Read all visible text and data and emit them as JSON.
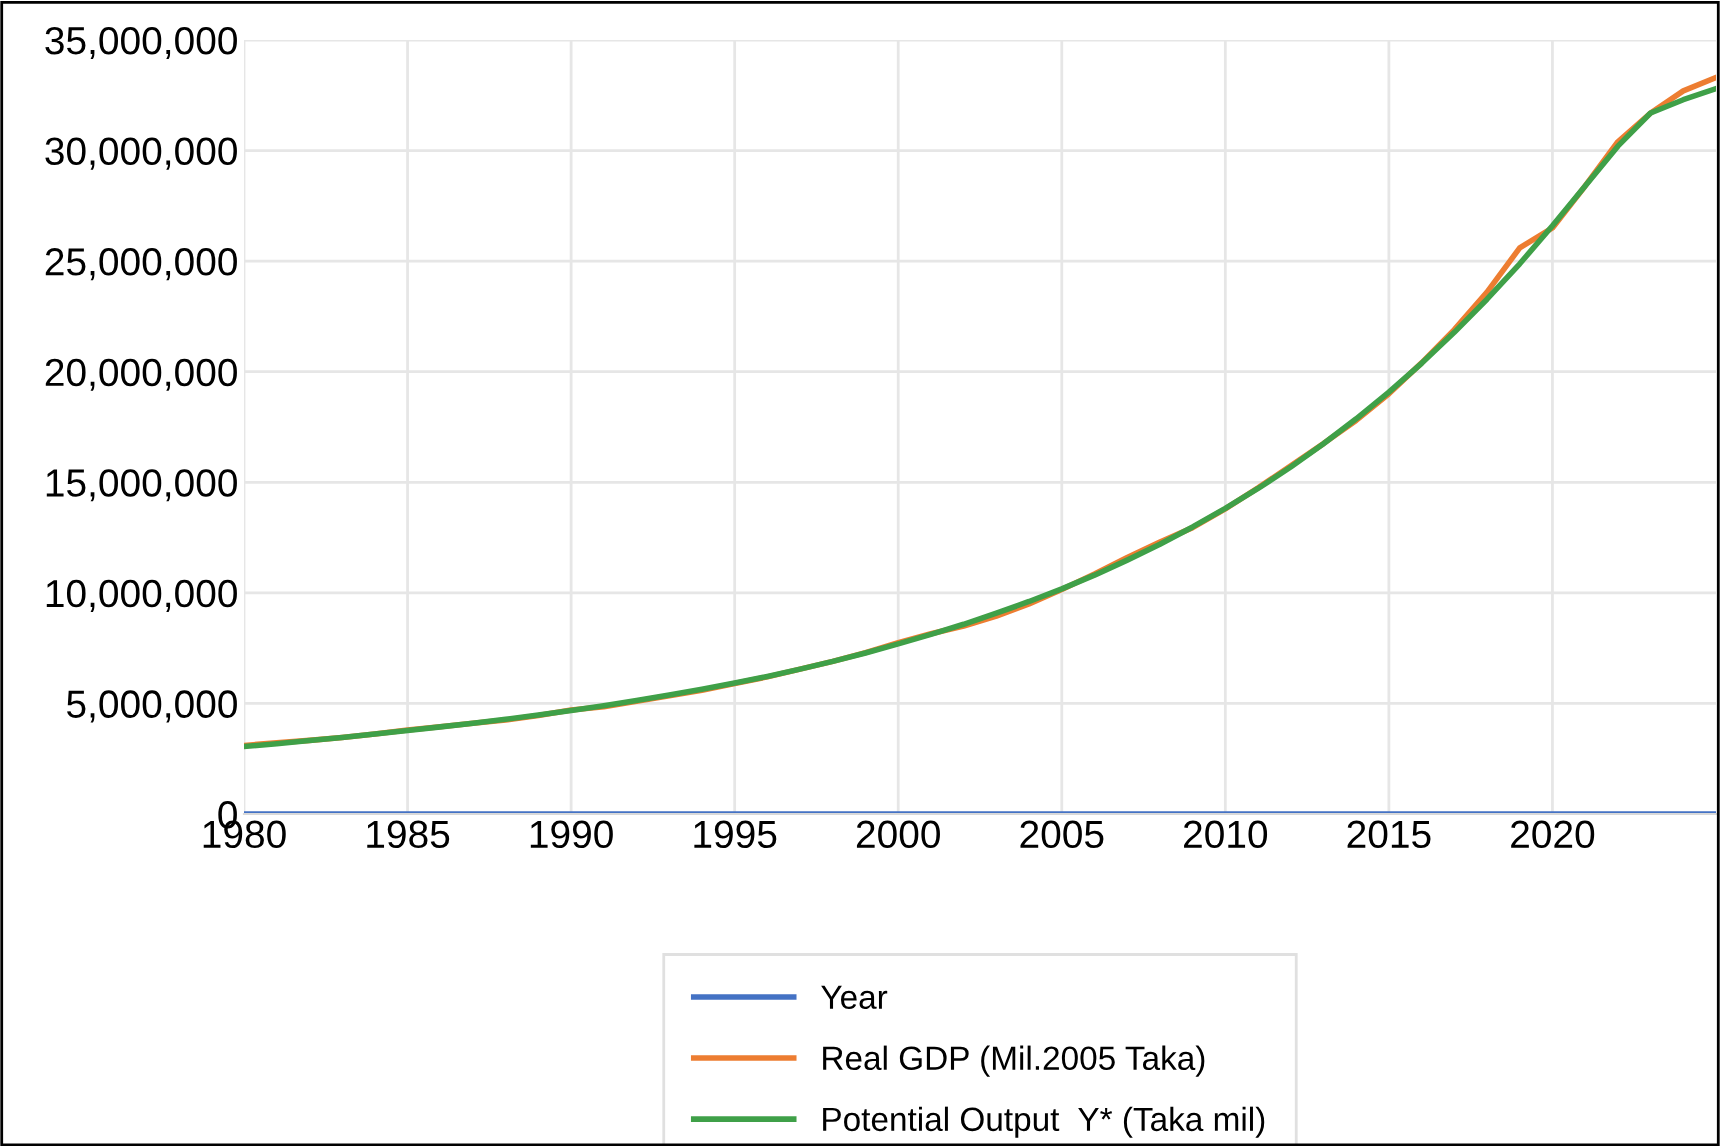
{
  "chart_data": {
    "type": "line",
    "x": [
      1980,
      1981,
      1982,
      1983,
      1984,
      1985,
      1986,
      1987,
      1988,
      1989,
      1990,
      1991,
      1992,
      1993,
      1994,
      1995,
      1996,
      1997,
      1998,
      1999,
      2000,
      2001,
      2002,
      2003,
      2004,
      2005,
      2006,
      2007,
      2008,
      2009,
      2010,
      2011,
      2012,
      2013,
      2014,
      2015,
      2016,
      2017,
      2018,
      2019,
      2020,
      2021,
      2022,
      2023,
      2024,
      2025
    ],
    "series": [
      {
        "name": "Year",
        "color": "#4472c4",
        "values": [
          1980,
          1981,
          1982,
          1983,
          1984,
          1985,
          1986,
          1987,
          1988,
          1989,
          1990,
          1991,
          1992,
          1993,
          1994,
          1995,
          1996,
          1997,
          1998,
          1999,
          2000,
          2001,
          2002,
          2003,
          2004,
          2005,
          2006,
          2007,
          2008,
          2009,
          2010,
          2011,
          2012,
          2013,
          2014,
          2015,
          2016,
          2017,
          2018,
          2019,
          2020,
          2021,
          2022,
          2023,
          2024,
          2025
        ]
      },
      {
        "name": "Real GDP (Mil.2005 Taka)",
        "color": "#ed7d31",
        "values": [
          3100000,
          3220000,
          3330000,
          3460000,
          3620000,
          3800000,
          3950000,
          4100000,
          4250000,
          4450000,
          4700000,
          4850000,
          5100000,
          5350000,
          5600000,
          5900000,
          6200000,
          6550000,
          6900000,
          7300000,
          7750000,
          8150000,
          8500000,
          8950000,
          9500000,
          10150000,
          10850000,
          11600000,
          12300000,
          12950000,
          13800000,
          14750000,
          15750000,
          16750000,
          17800000,
          19000000,
          20400000,
          21900000,
          23600000,
          25600000,
          26500000,
          28400000,
          30400000,
          31700000,
          32700000,
          33300000
        ]
      },
      {
        "name": "Potential Output  Y* (Taka mil)",
        "color": "#3fa048",
        "values": [
          3050000,
          3180000,
          3320000,
          3460000,
          3620000,
          3780000,
          3940000,
          4100000,
          4280000,
          4480000,
          4680000,
          4900000,
          5130000,
          5380000,
          5640000,
          5920000,
          6220000,
          6550000,
          6900000,
          7280000,
          7690000,
          8120000,
          8580000,
          9080000,
          9610000,
          10180000,
          10800000,
          11480000,
          12200000,
          12980000,
          13820000,
          14720000,
          15690000,
          16740000,
          17870000,
          19080000,
          20380000,
          21780000,
          23280000,
          24880000,
          26600000,
          28400000,
          30200000,
          31700000,
          32300000,
          32800000
        ]
      }
    ],
    "xlim": [
      1980,
      2025
    ],
    "xticks": [
      1980,
      1985,
      1990,
      1995,
      2000,
      2005,
      2010,
      2015,
      2020
    ],
    "ylim": [
      0,
      35000000
    ],
    "yticks": [
      {
        "value": 0,
        "label": "0"
      },
      {
        "value": 5000000,
        "label": "5,000,000"
      },
      {
        "value": 10000000,
        "label": "10,000,000"
      },
      {
        "value": 15000000,
        "label": "15,000,000"
      },
      {
        "value": 20000000,
        "label": "20,000,000"
      },
      {
        "value": 25000000,
        "label": "25,000,000"
      },
      {
        "value": 30000000,
        "label": "30,000,000"
      },
      {
        "value": 35000000,
        "label": "35,000,000"
      }
    ],
    "grid": true,
    "legend": "bottom",
    "marker": "none",
    "line_style": "solid"
  }
}
